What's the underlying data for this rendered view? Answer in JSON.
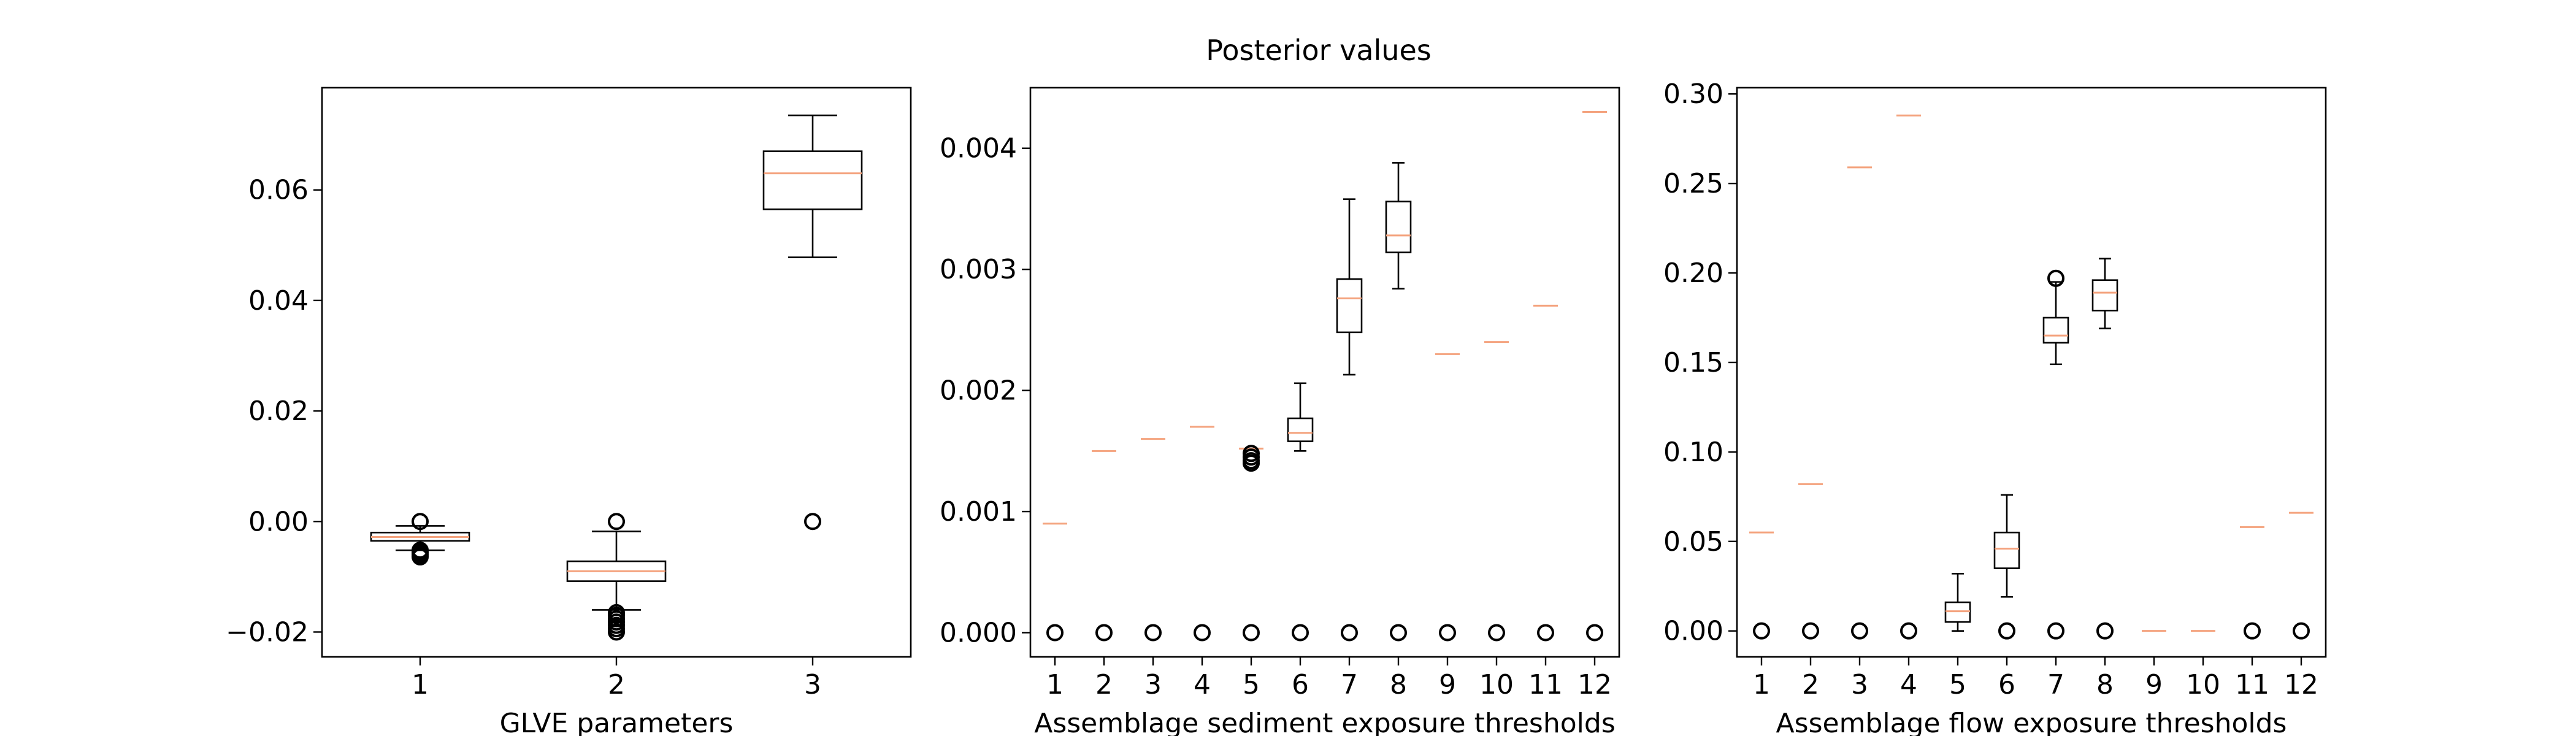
{
  "figure_title": "Posterior values",
  "colors": {
    "median": "#f4a37e",
    "box": "#000000",
    "frame": "#000000"
  },
  "chart_data": [
    {
      "type": "boxplot",
      "xlabel": "GLVE parameters",
      "ylabel": "",
      "ylim": [
        -0.0245,
        0.0785
      ],
      "yticks": [
        -0.02,
        0.0,
        0.02,
        0.04,
        0.06
      ],
      "ytick_labels": [
        "−0.02",
        "0.00",
        "0.02",
        "0.04",
        "0.06"
      ],
      "categories": [
        "1",
        "2",
        "3"
      ],
      "boxes": [
        {
          "q1": -0.0035,
          "median": -0.0028,
          "q3": -0.002,
          "whislo": -0.0052,
          "whishi": -0.0008,
          "fliers": [
            0.0,
            -0.0052,
            -0.0056,
            -0.006,
            -0.0064
          ]
        },
        {
          "q1": -0.0108,
          "median": -0.009,
          "q3": -0.0072,
          "whislo": -0.016,
          "whishi": -0.0018,
          "fliers": [
            0.0,
            -0.0165,
            -0.017,
            -0.0176,
            -0.0182,
            -0.0188,
            -0.0194,
            -0.02
          ]
        },
        {
          "q1": 0.0565,
          "median": 0.063,
          "q3": 0.067,
          "whislo": 0.0478,
          "whishi": 0.0735,
          "fliers": [
            0.0
          ]
        }
      ]
    },
    {
      "type": "boxplot",
      "xlabel": "Assemblage sediment exposure thresholds",
      "ylabel": "",
      "ylim": [
        -0.0002,
        0.0045
      ],
      "yticks": [
        0.0,
        0.001,
        0.002,
        0.003,
        0.004
      ],
      "ytick_labels": [
        "0.000",
        "0.001",
        "0.002",
        "0.003",
        "0.004"
      ],
      "categories": [
        "1",
        "2",
        "3",
        "4",
        "5",
        "6",
        "7",
        "8",
        "9",
        "10",
        "11",
        "12"
      ],
      "boxes": [
        {
          "q1": 0.0009,
          "median": 0.0009,
          "q3": 0.0009,
          "whislo": 0.0009,
          "whishi": 0.0009,
          "fliers": [
            0.0
          ]
        },
        {
          "q1": 0.0015,
          "median": 0.0015,
          "q3": 0.0015,
          "whislo": 0.0015,
          "whishi": 0.0015,
          "fliers": [
            0.0
          ]
        },
        {
          "q1": 0.0016,
          "median": 0.0016,
          "q3": 0.0016,
          "whislo": 0.0016,
          "whishi": 0.0016,
          "fliers": [
            0.0
          ]
        },
        {
          "q1": 0.0017,
          "median": 0.0017,
          "q3": 0.0017,
          "whislo": 0.0017,
          "whishi": 0.0017,
          "fliers": [
            0.0
          ]
        },
        {
          "q1": 0.00152,
          "median": 0.00152,
          "q3": 0.00152,
          "whislo": 0.00152,
          "whishi": 0.00152,
          "fliers": [
            0.0,
            0.00148,
            0.00145,
            0.00142,
            0.0014
          ]
        },
        {
          "q1": 0.00158,
          "median": 0.00165,
          "q3": 0.00177,
          "whislo": 0.0015,
          "whishi": 0.00206,
          "fliers": [
            0.0
          ]
        },
        {
          "q1": 0.00248,
          "median": 0.00276,
          "q3": 0.00292,
          "whislo": 0.00213,
          "whishi": 0.00358,
          "fliers": [
            0.0
          ]
        },
        {
          "q1": 0.00314,
          "median": 0.00328,
          "q3": 0.00356,
          "whislo": 0.00284,
          "whishi": 0.00388,
          "fliers": [
            0.0
          ]
        },
        {
          "q1": 0.0023,
          "median": 0.0023,
          "q3": 0.0023,
          "whislo": 0.0023,
          "whishi": 0.0023,
          "fliers": [
            0.0
          ]
        },
        {
          "q1": 0.0024,
          "median": 0.0024,
          "q3": 0.0024,
          "whislo": 0.0024,
          "whishi": 0.0024,
          "fliers": [
            0.0
          ]
        },
        {
          "q1": 0.0027,
          "median": 0.0027,
          "q3": 0.0027,
          "whislo": 0.0027,
          "whishi": 0.0027,
          "fliers": [
            0.0
          ]
        },
        {
          "q1": 0.0043,
          "median": 0.0043,
          "q3": 0.0043,
          "whislo": 0.0043,
          "whishi": 0.0043,
          "fliers": [
            0.0
          ]
        }
      ]
    },
    {
      "type": "boxplot",
      "xlabel": "Assemblage flow exposure thresholds",
      "ylabel": "",
      "ylim": [
        -0.0145,
        0.3035
      ],
      "yticks": [
        0.0,
        0.05,
        0.1,
        0.15,
        0.2,
        0.25,
        0.3
      ],
      "ytick_labels": [
        "0.00",
        "0.05",
        "0.10",
        "0.15",
        "0.20",
        "0.25",
        "0.30"
      ],
      "categories": [
        "1",
        "2",
        "3",
        "4",
        "5",
        "6",
        "7",
        "8",
        "9",
        "10",
        "11",
        "12"
      ],
      "boxes": [
        {
          "q1": 0.055,
          "median": 0.055,
          "q3": 0.055,
          "whislo": 0.055,
          "whishi": 0.055,
          "fliers": [
            0.0
          ]
        },
        {
          "q1": 0.082,
          "median": 0.082,
          "q3": 0.082,
          "whislo": 0.082,
          "whishi": 0.082,
          "fliers": [
            0.0
          ]
        },
        {
          "q1": 0.259,
          "median": 0.259,
          "q3": 0.259,
          "whislo": 0.259,
          "whishi": 0.259,
          "fliers": [
            0.0
          ]
        },
        {
          "q1": 0.288,
          "median": 0.288,
          "q3": 0.288,
          "whislo": 0.288,
          "whishi": 0.288,
          "fliers": [
            0.0
          ]
        },
        {
          "q1": 0.005,
          "median": 0.011,
          "q3": 0.016,
          "whislo": 0.0,
          "whishi": 0.032,
          "fliers": []
        },
        {
          "q1": 0.035,
          "median": 0.046,
          "q3": 0.055,
          "whislo": 0.019,
          "whishi": 0.076,
          "fliers": [
            0.0
          ]
        },
        {
          "q1": 0.161,
          "median": 0.165,
          "q3": 0.175,
          "whislo": 0.149,
          "whishi": 0.195,
          "fliers": [
            0.0,
            0.197
          ]
        },
        {
          "q1": 0.179,
          "median": 0.189,
          "q3": 0.196,
          "whislo": 0.169,
          "whishi": 0.208,
          "fliers": [
            0.0
          ]
        },
        {
          "q1": 0.0,
          "median": 0.0,
          "q3": 0.0,
          "whislo": 0.0,
          "whishi": 0.0,
          "fliers": []
        },
        {
          "q1": 0.0,
          "median": 0.0,
          "q3": 0.0,
          "whislo": 0.0,
          "whishi": 0.0,
          "fliers": []
        },
        {
          "q1": 0.058,
          "median": 0.058,
          "q3": 0.058,
          "whislo": 0.058,
          "whishi": 0.058,
          "fliers": [
            0.0
          ]
        },
        {
          "q1": 0.066,
          "median": 0.066,
          "q3": 0.066,
          "whislo": 0.066,
          "whishi": 0.066,
          "fliers": [
            0.0
          ]
        }
      ]
    }
  ]
}
